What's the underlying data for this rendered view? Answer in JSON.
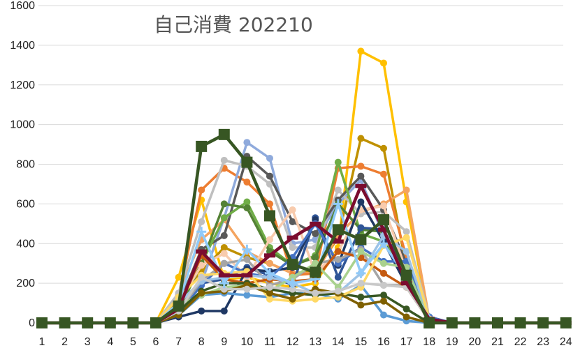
{
  "chart_data": {
    "type": "line",
    "title": "自己消費 202210",
    "xlabel": "",
    "ylabel": "",
    "x": [
      1,
      2,
      3,
      4,
      5,
      6,
      7,
      8,
      9,
      10,
      11,
      12,
      13,
      14,
      15,
      16,
      17,
      18,
      19,
      20,
      21,
      22,
      23,
      24
    ],
    "x_tick_labels": [
      "1",
      "2",
      "3",
      "4",
      "5",
      "6",
      "7",
      "8",
      "9",
      "10",
      "11",
      "12",
      "13",
      "14",
      "15",
      "16",
      "17",
      "18",
      "19",
      "20",
      "21",
      "22",
      "23",
      "24"
    ],
    "ylim": [
      0,
      1600
    ],
    "y_ticks": [
      0,
      200,
      400,
      600,
      800,
      1000,
      1200,
      1400,
      1600
    ],
    "y_tick_labels": [
      "0",
      "200",
      "400",
      "600",
      "800",
      "1000",
      "1200",
      "1400",
      "1600"
    ],
    "grid": "horizontal",
    "legend": "none",
    "series": [
      {
        "color": "#FFC000",
        "marker": "circle",
        "values": [
          0,
          0,
          0,
          0,
          0,
          0,
          230,
          620,
          220,
          230,
          200,
          180,
          200,
          380,
          1370,
          1310,
          610,
          10,
          0,
          0,
          0,
          0,
          0,
          0
        ]
      },
      {
        "color": "#BF9000",
        "marker": "circle",
        "values": [
          0,
          0,
          0,
          0,
          0,
          0,
          120,
          260,
          380,
          330,
          300,
          250,
          260,
          430,
          930,
          880,
          280,
          20,
          0,
          0,
          0,
          0,
          0,
          0
        ]
      },
      {
        "color": "#F4A460",
        "marker": "circle",
        "values": [
          0,
          0,
          0,
          0,
          0,
          0,
          150,
          420,
          520,
          360,
          300,
          250,
          250,
          440,
          560,
          600,
          670,
          20,
          0,
          0,
          0,
          0,
          0,
          0
        ]
      },
      {
        "color": "#ED7D31",
        "marker": "circle",
        "values": [
          0,
          0,
          0,
          0,
          0,
          0,
          140,
          670,
          780,
          710,
          600,
          240,
          250,
          780,
          790,
          750,
          330,
          20,
          0,
          0,
          0,
          0,
          0,
          0
        ]
      },
      {
        "color": "#8FAADC",
        "marker": "circle",
        "values": [
          0,
          0,
          0,
          0,
          0,
          0,
          80,
          200,
          530,
          910,
          830,
          400,
          420,
          600,
          720,
          440,
          200,
          20,
          0,
          0,
          0,
          0,
          0,
          0
        ]
      },
      {
        "color": "#BFBFBF",
        "marker": "circle",
        "values": [
          0,
          0,
          0,
          0,
          0,
          0,
          150,
          510,
          820,
          790,
          700,
          380,
          380,
          670,
          550,
          560,
          460,
          30,
          0,
          0,
          0,
          0,
          0,
          0
        ]
      },
      {
        "color": "#595959",
        "marker": "circle",
        "values": [
          0,
          0,
          0,
          0,
          0,
          0,
          90,
          370,
          440,
          840,
          740,
          510,
          450,
          620,
          740,
          570,
          300,
          30,
          0,
          0,
          0,
          0,
          0,
          0
        ]
      },
      {
        "color": "#70AD47",
        "marker": "circle",
        "values": [
          0,
          0,
          0,
          0,
          0,
          0,
          60,
          300,
          530,
          610,
          380,
          290,
          340,
          810,
          450,
          410,
          270,
          10,
          0,
          0,
          0,
          0,
          0,
          0
        ]
      },
      {
        "color": "#548235",
        "marker": "circle",
        "values": [
          0,
          0,
          0,
          0,
          0,
          0,
          70,
          300,
          600,
          580,
          360,
          290,
          330,
          600,
          470,
          460,
          230,
          10,
          0,
          0,
          0,
          0,
          0,
          0
        ]
      },
      {
        "color": "#F8CBAD",
        "marker": "circle",
        "values": [
          0,
          0,
          0,
          0,
          0,
          0,
          100,
          290,
          350,
          230,
          420,
          570,
          250,
          360,
          570,
          590,
          260,
          20,
          0,
          0,
          0,
          0,
          0,
          0
        ]
      },
      {
        "color": "#2F5597",
        "marker": "circle",
        "values": [
          0,
          0,
          0,
          0,
          0,
          0,
          40,
          200,
          220,
          280,
          240,
          190,
          530,
          230,
          480,
          470,
          240,
          20,
          0,
          0,
          0,
          0,
          0,
          0
        ]
      },
      {
        "color": "#1F3864",
        "marker": "circle",
        "values": [
          0,
          0,
          0,
          0,
          0,
          0,
          30,
          60,
          60,
          270,
          260,
          280,
          520,
          290,
          610,
          410,
          190,
          20,
          0,
          0,
          0,
          0,
          0,
          0
        ]
      },
      {
        "color": "#4472C4",
        "marker": "circle",
        "values": [
          0,
          0,
          0,
          0,
          0,
          0,
          50,
          190,
          300,
          250,
          230,
          330,
          500,
          300,
          380,
          310,
          310,
          30,
          0,
          0,
          0,
          0,
          0,
          0
        ]
      },
      {
        "color": "#A5A5A5",
        "marker": "circle",
        "values": [
          0,
          0,
          0,
          0,
          0,
          0,
          60,
          210,
          300,
          320,
          190,
          220,
          300,
          320,
          370,
          190,
          190,
          10,
          0,
          0,
          0,
          0,
          0,
          0
        ]
      },
      {
        "color": "#C55A11",
        "marker": "circle",
        "values": [
          0,
          0,
          0,
          0,
          0,
          0,
          70,
          340,
          220,
          200,
          220,
          210,
          220,
          360,
          330,
          250,
          180,
          10,
          0,
          0,
          0,
          0,
          0,
          0
        ]
      },
      {
        "color": "#5B9BD5",
        "marker": "circle",
        "values": [
          0,
          0,
          0,
          0,
          0,
          0,
          40,
          140,
          150,
          140,
          130,
          150,
          150,
          120,
          190,
          40,
          10,
          0,
          0,
          0,
          0,
          0,
          0,
          0
        ]
      },
      {
        "color": "#9DC3E6",
        "marker": "circle",
        "values": [
          0,
          0,
          0,
          0,
          0,
          0,
          100,
          210,
          230,
          240,
          230,
          200,
          150,
          150,
          250,
          440,
          360,
          10,
          0,
          0,
          0,
          0,
          0,
          0
        ]
      },
      {
        "color": "#A9D18E",
        "marker": "circle",
        "values": [
          0,
          0,
          0,
          0,
          0,
          0,
          90,
          140,
          180,
          190,
          160,
          230,
          300,
          180,
          360,
          300,
          280,
          10,
          0,
          0,
          0,
          0,
          0,
          0
        ]
      },
      {
        "color": "#385723",
        "marker": "circle",
        "values": [
          0,
          0,
          0,
          0,
          0,
          0,
          60,
          160,
          200,
          200,
          170,
          150,
          140,
          150,
          130,
          140,
          70,
          0,
          0,
          0,
          0,
          0,
          0,
          0
        ]
      },
      {
        "color": "#FFD966",
        "marker": "circle",
        "values": [
          0,
          0,
          0,
          0,
          0,
          0,
          130,
          240,
          250,
          260,
          120,
          110,
          120,
          130,
          180,
          390,
          430,
          20,
          0,
          0,
          0,
          0,
          0,
          0
        ]
      },
      {
        "color": "#7F6000",
        "marker": "circle",
        "values": [
          0,
          0,
          0,
          0,
          0,
          0,
          40,
          150,
          160,
          190,
          150,
          120,
          170,
          150,
          90,
          110,
          30,
          0,
          0,
          0,
          0,
          0,
          0,
          0
        ]
      },
      {
        "color": "#C9C9C9",
        "marker": "circle",
        "values": [
          0,
          0,
          0,
          0,
          0,
          0,
          60,
          230,
          170,
          170,
          180,
          170,
          150,
          160,
          200,
          190,
          180,
          10,
          0,
          0,
          0,
          0,
          0,
          0
        ]
      },
      {
        "color": "#90CAF9",
        "marker": "plus",
        "values": [
          0,
          0,
          0,
          0,
          0,
          0,
          100,
          460,
          200,
          370,
          250,
          200,
          220,
          600,
          250,
          400,
          230,
          20,
          0,
          0,
          0,
          0,
          0,
          0
        ]
      },
      {
        "color": "#7B0C2F",
        "marker": "dash",
        "values": [
          0,
          0,
          0,
          0,
          0,
          0,
          70,
          360,
          240,
          240,
          340,
          430,
          500,
          410,
          690,
          470,
          200,
          20,
          0,
          0,
          0,
          0,
          0,
          0
        ]
      },
      {
        "color": "#375623",
        "marker": "square",
        "values": [
          0,
          0,
          0,
          0,
          0,
          0,
          85,
          890,
          950,
          810,
          540,
          295,
          255,
          470,
          420,
          520,
          240,
          0,
          0,
          0,
          0,
          0,
          0,
          0
        ]
      }
    ]
  }
}
